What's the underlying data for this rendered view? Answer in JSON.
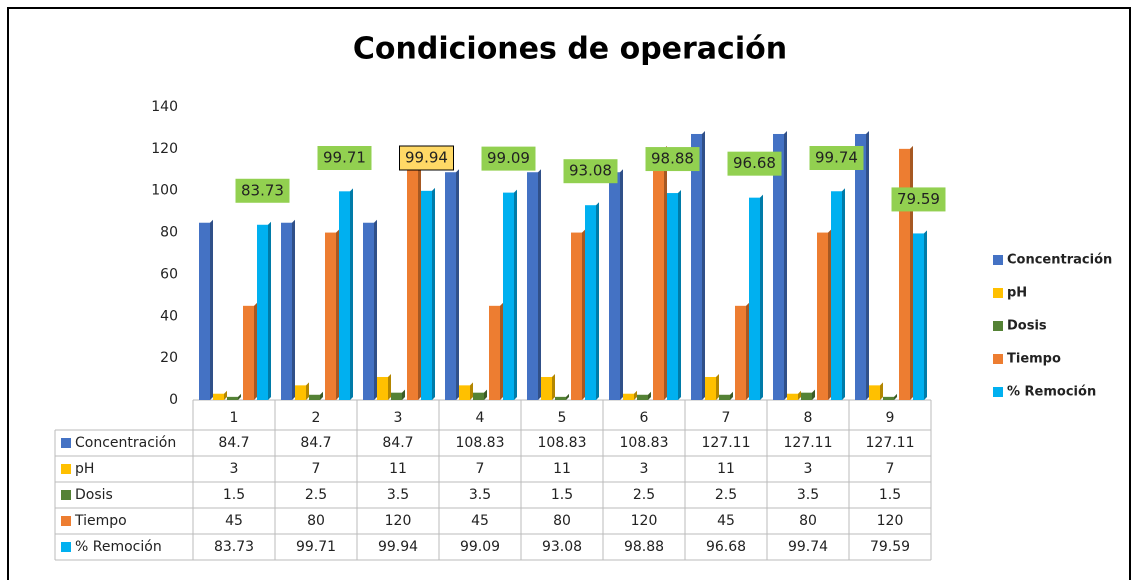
{
  "chart_data": {
    "type": "bar",
    "title": "Condiciones de operación",
    "categories": [
      "1",
      "2",
      "3",
      "4",
      "5",
      "6",
      "7",
      "8",
      "9"
    ],
    "series": [
      {
        "name": "Concentración",
        "color": "#4472c4",
        "values": [
          84.7,
          84.7,
          84.7,
          108.83,
          108.83,
          108.83,
          127.11,
          127.11,
          127.11
        ]
      },
      {
        "name": "pH",
        "color": "#ffc000",
        "values": [
          3,
          7,
          11,
          7,
          11,
          3,
          11,
          3,
          7
        ]
      },
      {
        "name": "Dosis",
        "color": "#548235",
        "values": [
          1.5,
          2.5,
          3.5,
          3.5,
          1.5,
          2.5,
          2.5,
          3.5,
          1.5
        ]
      },
      {
        "name": "Tiempo",
        "color": "#ed7d31",
        "values": [
          45,
          80,
          120,
          45,
          80,
          120,
          45,
          80,
          120
        ]
      },
      {
        "name": "% Remoción",
        "color": "#00b0f0",
        "values": [
          83.73,
          99.71,
          99.94,
          99.09,
          93.08,
          98.88,
          96.68,
          99.74,
          79.59
        ]
      }
    ],
    "labeled_series": 4,
    "label_color": "#92d050",
    "highlighted_label": 2,
    "highlight_color": "#ffd966",
    "ylim": [
      0,
      140
    ],
    "yticks": [
      0,
      20,
      40,
      60,
      80,
      100,
      120,
      140
    ],
    "grid": false,
    "legend": "right",
    "data_table": true
  }
}
